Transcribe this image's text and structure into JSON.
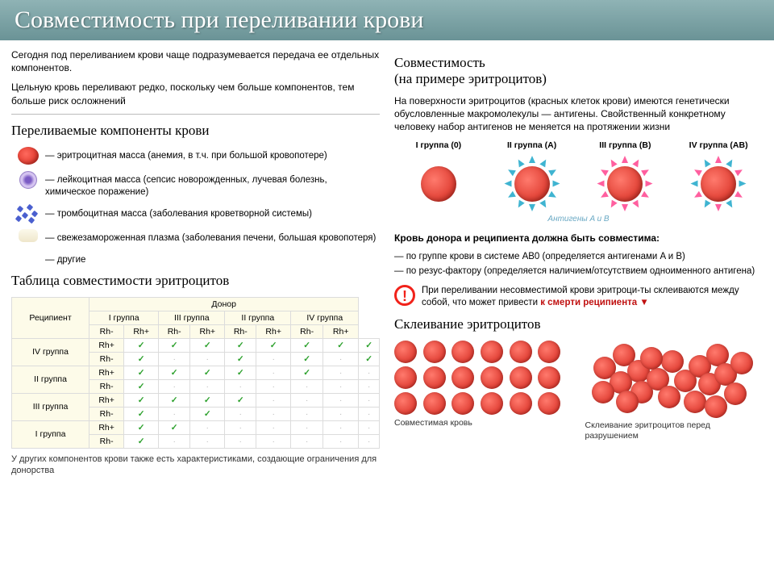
{
  "header": {
    "title": "Совместимость при переливании крови"
  },
  "left": {
    "intro1": "Сегодня под переливанием крови чаще подразумевается передача ее отдельных компонентов.",
    "intro2": "Цельную кровь переливают редко, поскольку чем больше компонентов, тем больше риск осложнений",
    "h_components": "Переливаемые компоненты крови",
    "components": [
      {
        "label": "— эритроцитная масса (анемия, в т.ч. при большой кровопотере)"
      },
      {
        "label": "— лейкоцитная масса (сепсис новорожденных, лучевая болезнь, химическое поражение)"
      },
      {
        "label": "— тромбоцитная масса (заболевания кроветворной системы)"
      },
      {
        "label": "— свежезамороженная плазма (заболевания печени, большая кровопотеря)"
      },
      {
        "label": "— другие"
      }
    ],
    "h_table": "Таблица совместимости эритроцитов",
    "table": {
      "corner": "Реципиент",
      "donor_header": "Донор",
      "groups": [
        "I группа",
        "III группа",
        "II группа",
        "IV группа"
      ],
      "rh_labels": [
        "Rh-",
        "Rh+",
        "Rh-",
        "Rh+",
        "Rh-",
        "Rh+",
        "Rh-",
        "Rh+"
      ],
      "rows": [
        {
          "g": "IV группа",
          "rh": "Rh+",
          "cells": [
            1,
            1,
            1,
            1,
            1,
            1,
            1,
            1
          ]
        },
        {
          "g": "",
          "rh": "Rh-",
          "cells": [
            1,
            0,
            0,
            1,
            0,
            1,
            0,
            1
          ]
        },
        {
          "g": "II группа",
          "rh": "Rh+",
          "cells": [
            1,
            1,
            1,
            1,
            0,
            1,
            0,
            0
          ]
        },
        {
          "g": "",
          "rh": "Rh-",
          "cells": [
            1,
            0,
            0,
            0,
            0,
            0,
            0,
            0
          ]
        },
        {
          "g": "III группа",
          "rh": "Rh+",
          "cells": [
            1,
            1,
            1,
            1,
            0,
            0,
            0,
            0
          ]
        },
        {
          "g": "",
          "rh": "Rh-",
          "cells": [
            1,
            0,
            1,
            0,
            0,
            0,
            0,
            0
          ]
        },
        {
          "g": "I группа",
          "rh": "Rh+",
          "cells": [
            1,
            1,
            0,
            0,
            0,
            0,
            0,
            0
          ]
        },
        {
          "g": "",
          "rh": "Rh-",
          "cells": [
            1,
            0,
            0,
            0,
            0,
            0,
            0,
            0
          ]
        }
      ]
    },
    "footnote": "У других компонентов крови также есть характеристиками, создающие ограничения для донорства"
  },
  "right": {
    "h_compat": "Совместимость",
    "h_compat_sub": "(на примере эритроцитов)",
    "intro": "На поверхности эритроцитов (красных клеток крови) имеются генетически обусловленные макромолекулы — антигены. Свойственный конкретному человеку набор антигенов не меняется на протяжении жизни",
    "group_labels": [
      "I группа (0)",
      "II группа (A)",
      "III группа (B)",
      "IV группа (AB)"
    ],
    "antigens_caption": "Антигены A и B",
    "rule_title": "Кровь донора и реципиента должна быть совместима:",
    "rule1": "— по группе крови в системе AB0 (определяется антигенами A и B)",
    "rule2": "— по резус-фактору (определяется наличием/отсутствием одноименного антигена)",
    "warn": "При переливании несовместимой крови эритроци-ты склеиваются между собой, что может привести ",
    "warn_em": "к смерти реципиента ▼",
    "h_agg": "Склеивание эритроцитов",
    "cap_ok": "Совместимая кровь",
    "cap_bad": "Склеивание эритроцитов перед разрушением"
  },
  "colors": {
    "header_bg": "#6a9396",
    "cell_red": "#d22217",
    "antA": "#3fb4d1",
    "antB": "#ff5f9f",
    "check": "#2aa02a",
    "warn": "#f1221a"
  }
}
